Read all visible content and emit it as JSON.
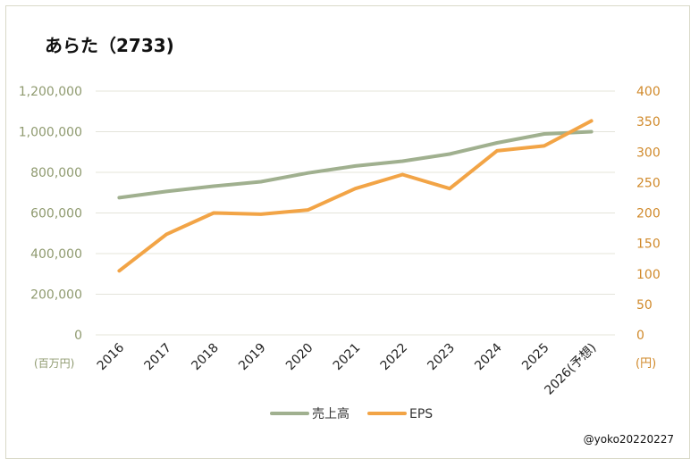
{
  "chart_data": {
    "type": "line",
    "title": "あらた（2733)",
    "categories": [
      "2016",
      "2017",
      "2018",
      "2019",
      "2020",
      "2021",
      "2022",
      "2023",
      "2024",
      "2025",
      "2026(予想)"
    ],
    "series": [
      {
        "name": "売上高",
        "axis": "left",
        "color": "#a0b08f",
        "values": [
          675000,
          706000,
          732000,
          754000,
          797000,
          831000,
          855000,
          890000,
          945000,
          989000,
          1000000
        ]
      },
      {
        "name": "EPS",
        "axis": "right",
        "color": "#f2a446",
        "values": [
          105,
          165,
          200,
          198,
          205,
          240,
          263,
          240,
          302,
          310,
          351
        ]
      }
    ],
    "y_left": {
      "range": [
        0,
        1200000
      ],
      "ticks": [
        "0",
        "200,000",
        "400,000",
        "600,000",
        "800,000",
        "1,000,000",
        "1,200,000"
      ],
      "unit": "(百万円)",
      "color": "#8f9a6f"
    },
    "y_right": {
      "range": [
        0,
        400
      ],
      "ticks": [
        "0",
        "50",
        "100",
        "150",
        "200",
        "250",
        "300",
        "350",
        "400"
      ],
      "unit": "(円)",
      "color": "#d0892a"
    },
    "grid": true,
    "legend_position": "bottom"
  },
  "watermark": "@yoko20220227"
}
